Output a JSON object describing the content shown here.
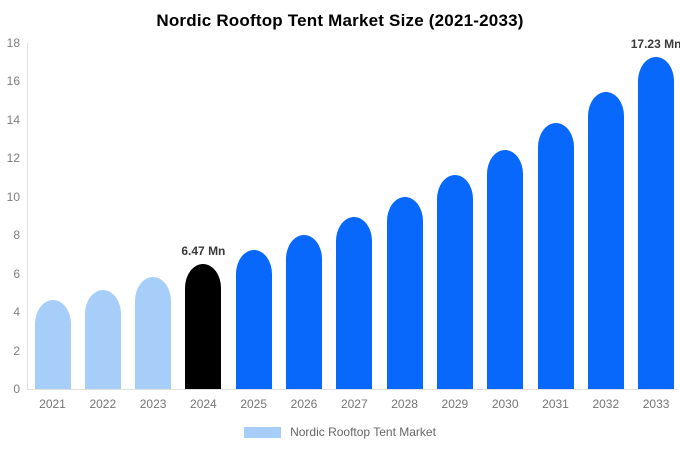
{
  "chart_data": {
    "type": "bar",
    "title": "Nordic Rooftop Tent Market Size (2021-2033)",
    "unit": "Mn",
    "categories": [
      "2021",
      "2022",
      "2023",
      "2024",
      "2025",
      "2026",
      "2027",
      "2028",
      "2029",
      "2030",
      "2031",
      "2032",
      "2033"
    ],
    "values": [
      4.62,
      5.16,
      5.8,
      6.47,
      7.2,
      8.02,
      8.95,
      9.98,
      11.12,
      12.4,
      13.83,
      15.42,
      17.23
    ],
    "yticks": [
      0,
      2,
      4,
      6,
      8,
      10,
      12,
      14,
      16,
      18
    ],
    "ylim": [
      0,
      18
    ],
    "ytick_step": 2,
    "grid": false,
    "bar_color_keys": [
      "light",
      "light",
      "light",
      "highlight",
      "primary",
      "primary",
      "primary",
      "primary",
      "primary",
      "primary",
      "primary",
      "primary",
      "primary"
    ],
    "palette": {
      "light": "#a6cef9",
      "highlight": "#000000",
      "primary": "#0768fb",
      "axis_line": "#e0e0e0",
      "tick_text": "#7d7d7d",
      "data_label_text": "#3a3a3a",
      "legend_text": "#666666",
      "title_text": "#000000",
      "background": "#ffffff"
    },
    "data_labels": [
      {
        "index": 3,
        "text": "6.47 Mn"
      },
      {
        "index": 12,
        "text": "17.23 Mn"
      }
    ],
    "legend": {
      "position": "bottom",
      "items": [
        {
          "label": "Nordic Rooftop Tent Market",
          "color_key": "light"
        }
      ]
    }
  }
}
